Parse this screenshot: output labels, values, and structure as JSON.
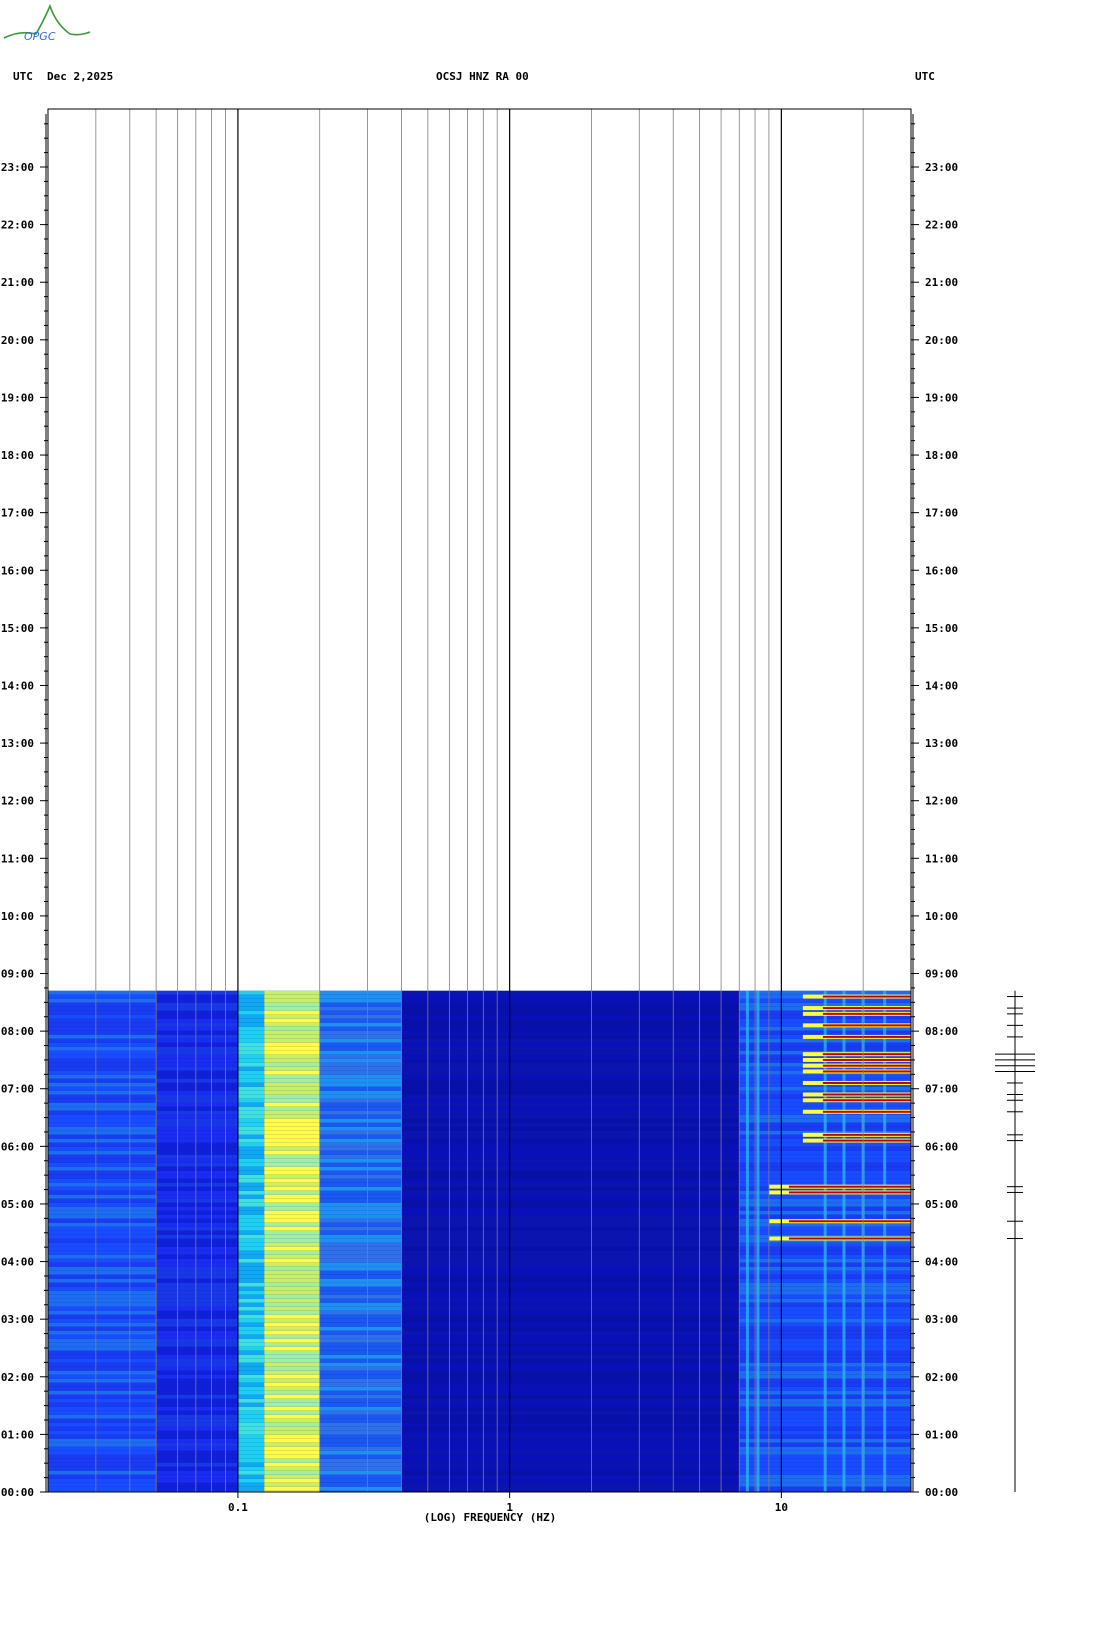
{
  "header": {
    "tz_left": "UTC",
    "date": "Dec 2,2025",
    "station": "OCSJ HNZ RA 00",
    "tz_right": "UTC"
  },
  "logo": {
    "text": "OPGC"
  },
  "colors": {
    "background_band": "#0000a8",
    "grid_major": "#000000",
    "grid_minor": "#7f7f7f",
    "cold": "#1a2cff",
    "cyan": "#20d0f0",
    "yellow": "#ffff40",
    "hot": "#ff2000"
  },
  "chart_data": {
    "type": "heatmap",
    "title": "OCSJ HNZ RA 00",
    "xlabel": "(LOG) FREQUENCY (HZ)",
    "ylabel": "",
    "x_scale": "log",
    "xlim": [
      0.02,
      30
    ],
    "x_ticks": [
      0.1,
      1,
      10
    ],
    "x_tick_labels": [
      "0.1",
      "1",
      "10"
    ],
    "y_ticks_hours": [
      0,
      1,
      2,
      3,
      4,
      5,
      6,
      7,
      8,
      9,
      10,
      11,
      12,
      13,
      14,
      15,
      16,
      17,
      18,
      19,
      20,
      21,
      22,
      23
    ],
    "y_tick_labels": [
      "00:00",
      "01:00",
      "02:00",
      "03:00",
      "04:00",
      "05:00",
      "06:00",
      "07:00",
      "08:00",
      "09:00",
      "10:00",
      "11:00",
      "12:00",
      "13:00",
      "14:00",
      "15:00",
      "16:00",
      "17:00",
      "18:00",
      "19:00",
      "20:00",
      "21:00",
      "22:00",
      "23:00"
    ],
    "ylim_hours": [
      0,
      24
    ],
    "data_end_hour": 8.7,
    "frequency_bands": [
      {
        "f_from": 0.02,
        "f_to": 0.05,
        "level": "blue-cyan"
      },
      {
        "f_from": 0.05,
        "f_to": 0.1,
        "level": "blue"
      },
      {
        "f_from": 0.1,
        "f_to": 0.125,
        "level": "cyan"
      },
      {
        "f_from": 0.125,
        "f_to": 0.2,
        "level": "yellow"
      },
      {
        "f_from": 0.2,
        "f_to": 0.4,
        "level": "cyan-blue"
      },
      {
        "f_from": 0.4,
        "f_to": 7,
        "level": "dark-blue"
      },
      {
        "f_from": 7,
        "f_to": 30,
        "level": "blue-cyan"
      }
    ],
    "events_hours": [
      8.6,
      8.4,
      8.3,
      8.1,
      7.9,
      7.6,
      7.5,
      7.4,
      7.3,
      7.1,
      6.9,
      6.8,
      6.6,
      6.2,
      6.1,
      5.3,
      5.2,
      4.7,
      4.4
    ]
  }
}
